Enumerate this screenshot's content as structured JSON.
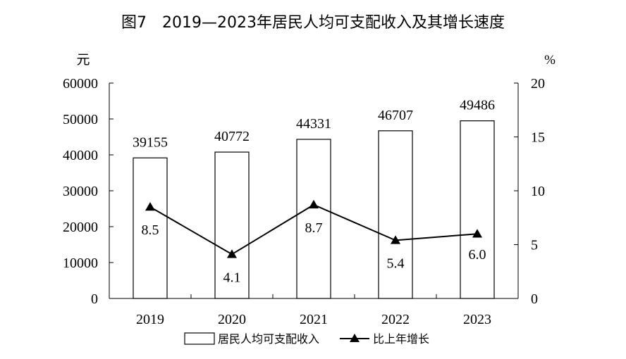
{
  "chart_data": {
    "type": "bar",
    "title": "图7　2019—2023年居民人均可支配收入及其增长速度",
    "categories": [
      "2019",
      "2020",
      "2021",
      "2022",
      "2023"
    ],
    "left_axis": {
      "unit_label": "元",
      "ylim": [
        0,
        60000
      ],
      "ticks": [
        "0",
        "10000",
        "20000",
        "30000",
        "40000",
        "50000",
        "60000"
      ]
    },
    "right_axis": {
      "unit_label": "%",
      "ylim": [
        0,
        20
      ],
      "ticks": [
        "0",
        "5",
        "10",
        "15",
        "20"
      ]
    },
    "series": [
      {
        "name": "居民人均可支配收入",
        "type": "bar",
        "axis": "left",
        "values": [
          39155,
          40772,
          44331,
          46707,
          49486
        ],
        "labels": [
          "39155",
          "40772",
          "44331",
          "46707",
          "49486"
        ]
      },
      {
        "name": "比上年增长",
        "type": "line",
        "marker": "triangle",
        "axis": "right",
        "values": [
          8.5,
          4.1,
          8.7,
          5.4,
          6.0
        ],
        "labels": [
          "8.5",
          "4.1",
          "8.7",
          "5.4",
          "6.0"
        ]
      }
    ],
    "grid": false,
    "legend_position": "bottom"
  }
}
